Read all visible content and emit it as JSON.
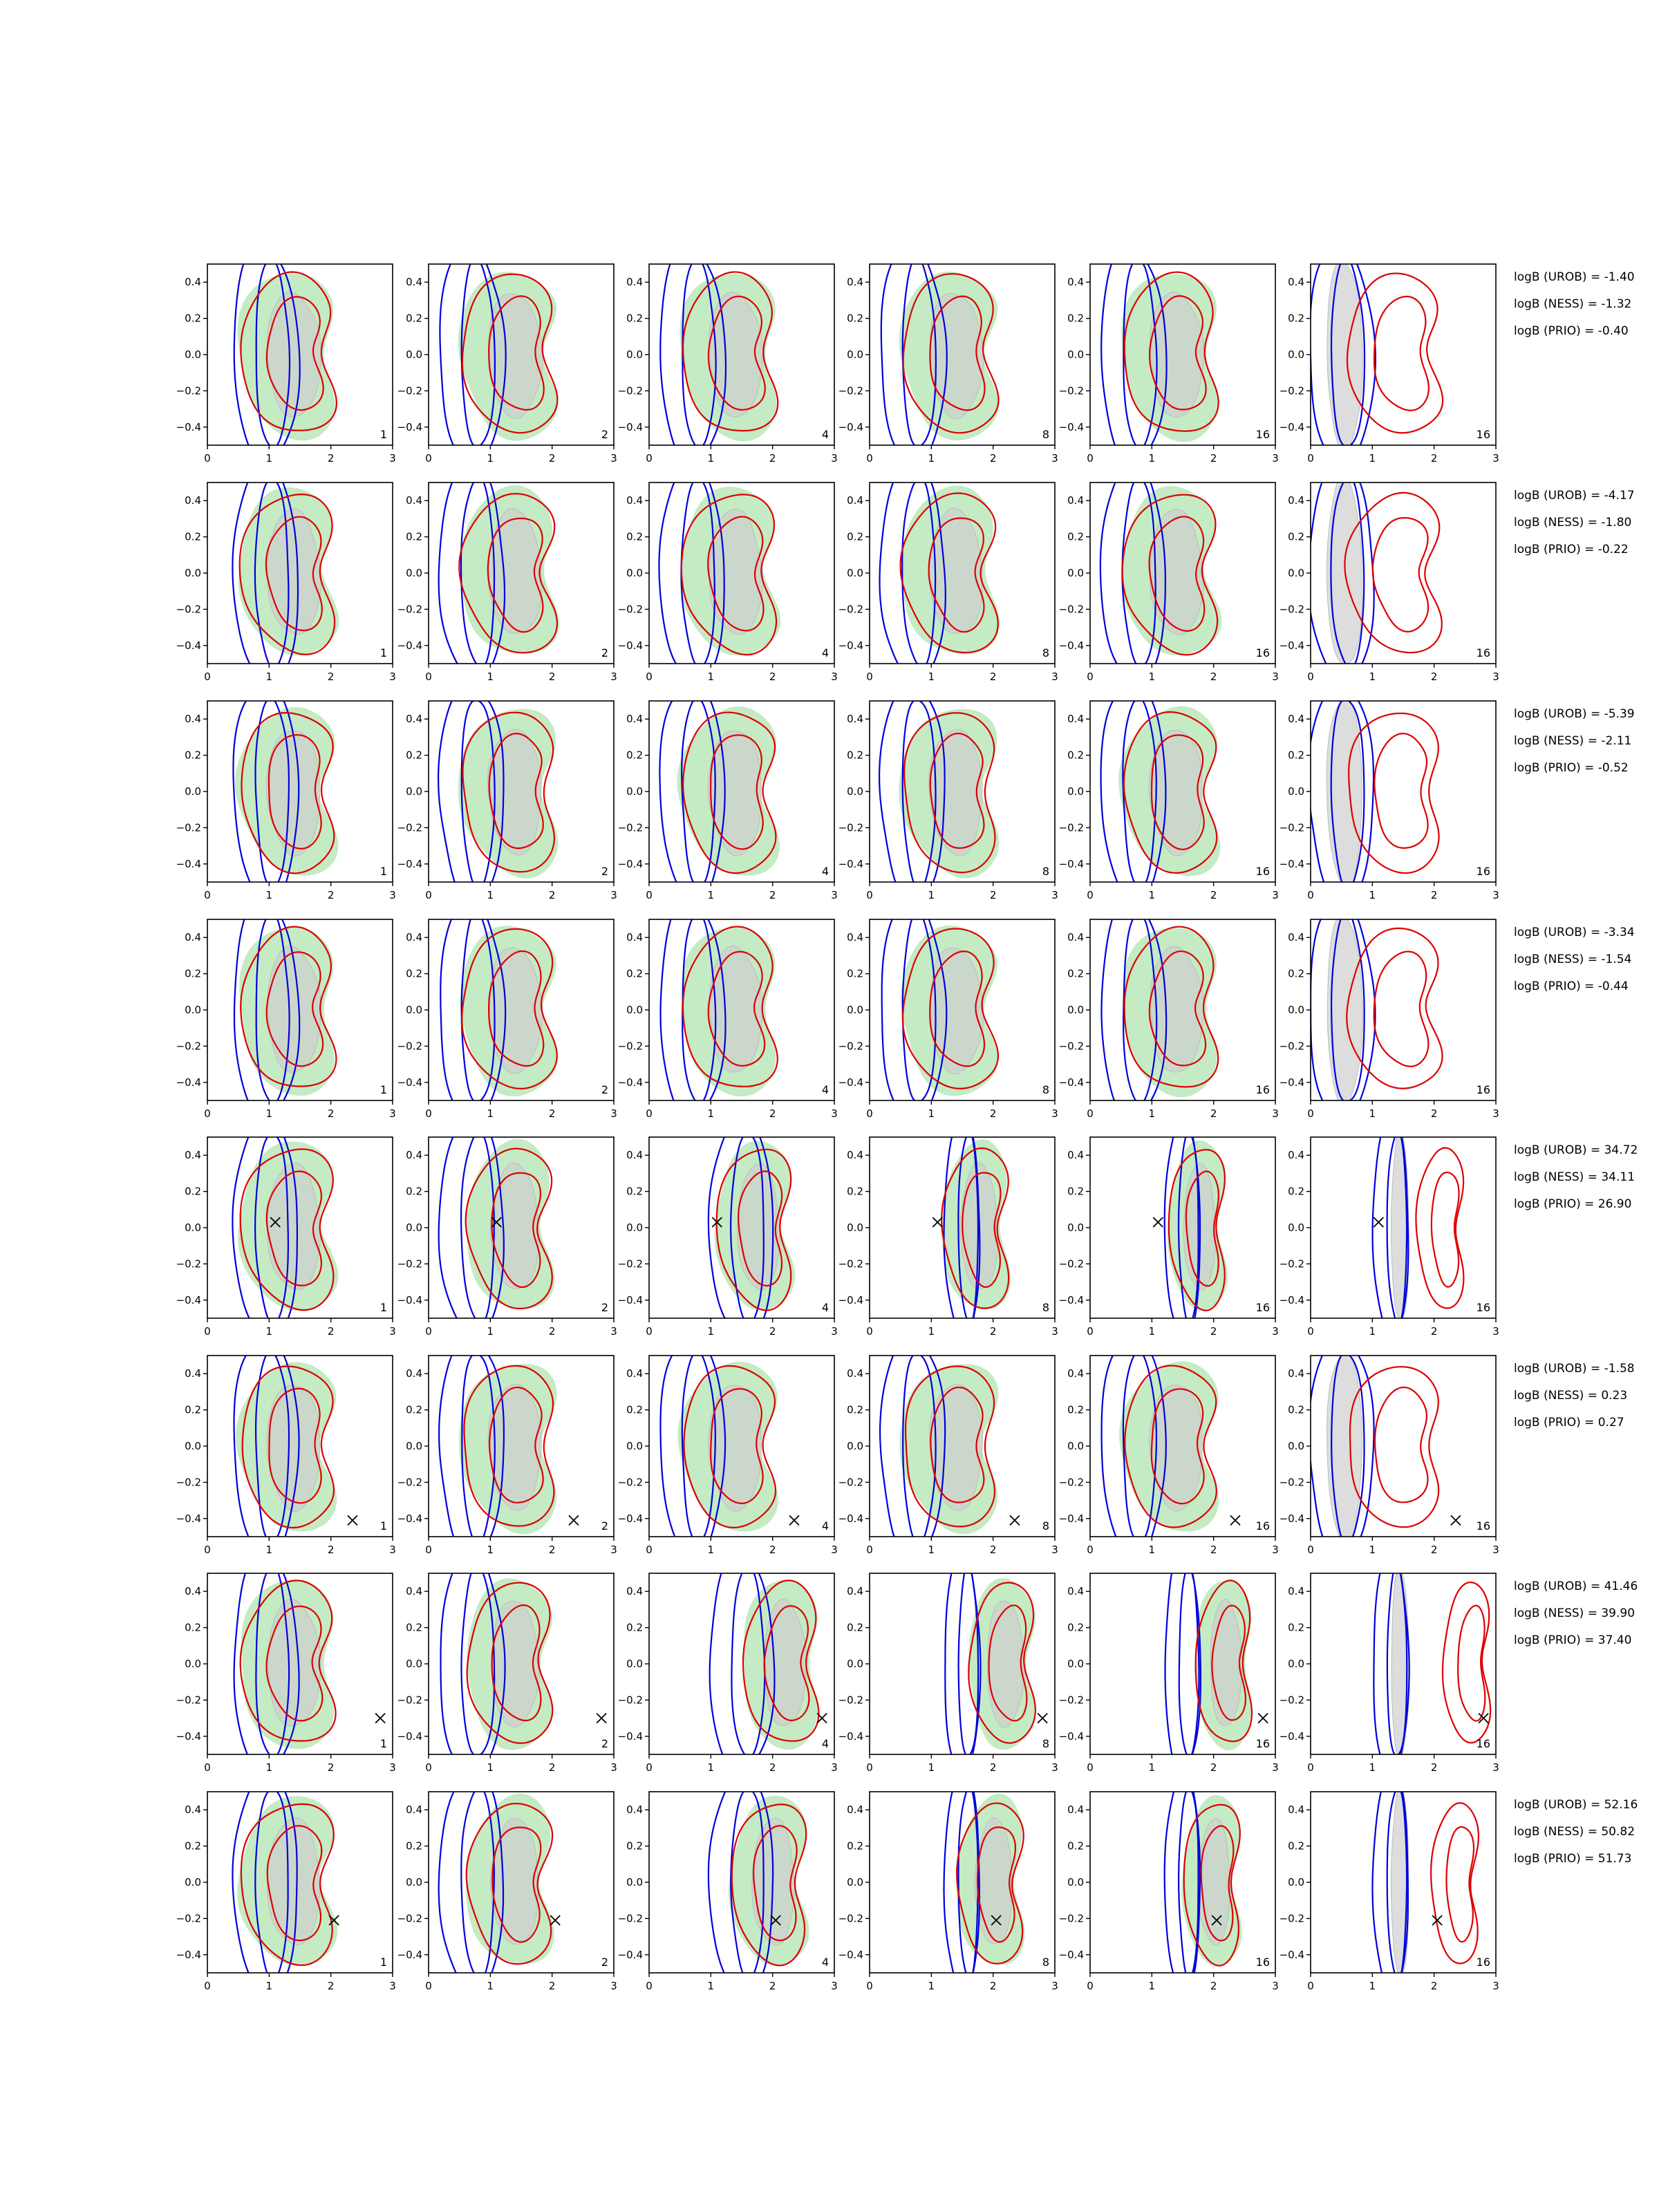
{
  "chart_data": {
    "type": "contour-grid",
    "rows": 8,
    "cols": 6,
    "xlim": [
      0,
      3
    ],
    "ylim": [
      -0.5,
      0.5
    ],
    "x_ticks": [
      0,
      1,
      2,
      3
    ],
    "y_ticks": [
      0.4,
      0.2,
      0.0,
      -0.2,
      -0.4
    ],
    "x_tick_labels": [
      "0",
      "1",
      "2",
      "3"
    ],
    "y_tick_labels": [
      "0.4",
      "0.2",
      "0.0",
      "−0.2",
      "−0.4"
    ],
    "panel_labels": [
      "1",
      "2",
      "4",
      "8",
      "16",
      "16"
    ],
    "series_colors": {
      "blue_contours": "#0000dd",
      "red_contours": "#dd0000",
      "green_density": "#b5e6b5",
      "gray_density": "#cfcfcf",
      "marker": "#000000"
    },
    "row_annotations": [
      [
        "logB (UROB) = -1.40",
        "logB (NESS) = -1.32",
        "logB (PRIO) = -0.40"
      ],
      [
        "logB (UROB) = -4.17",
        "logB (NESS) = -1.80",
        "logB (PRIO) = -0.22"
      ],
      [
        "logB (UROB) = -5.39",
        "logB (NESS) = -2.11",
        "logB (PRIO) = -0.52"
      ],
      [
        "logB (UROB) = -3.34",
        "logB (NESS) = -1.54",
        "logB (PRIO) = -0.44"
      ],
      [
        "logB (UROB) = 34.72",
        "logB (NESS) = 34.11",
        "logB (PRIO) = 26.90"
      ],
      [
        "logB (UROB) = -1.58",
        "logB (NESS) = 0.23",
        "logB (PRIO) = 0.27"
      ],
      [
        "logB (UROB) = 41.46",
        "logB (NESS) = 39.90",
        "logB (PRIO) = 37.40"
      ],
      [
        "logB (UROB) = 52.16",
        "logB (NESS) = 50.82",
        "logB (PRIO) = 51.73"
      ]
    ],
    "true_points": [
      null,
      null,
      null,
      null,
      [
        1.1,
        0.03
      ],
      [
        2.35,
        -0.41
      ],
      [
        2.8,
        -0.3
      ],
      [
        2.05,
        -0.21
      ]
    ]
  }
}
